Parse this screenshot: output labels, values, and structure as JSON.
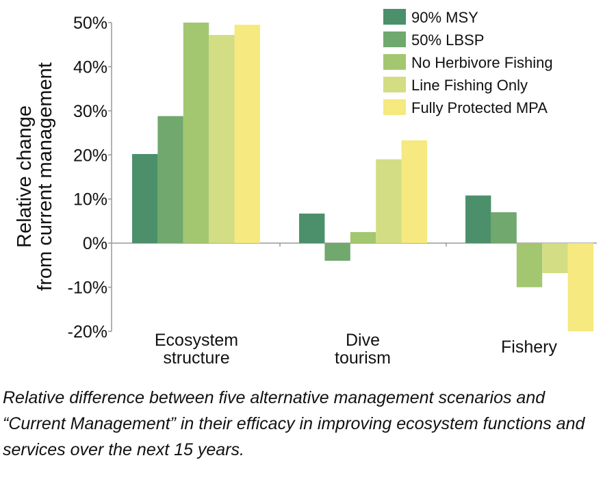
{
  "chart_data": {
    "type": "bar",
    "title": "",
    "ylabel_lines": [
      "Relative change",
      "from current management"
    ],
    "xlabel": "",
    "ylim": [
      -20,
      50
    ],
    "yticks": [
      "50%",
      "40%",
      "30%",
      "20%",
      "10%",
      "0%",
      "-10%",
      "-20%"
    ],
    "ytick_values": [
      50,
      40,
      30,
      20,
      10,
      0,
      -10,
      -20
    ],
    "categories": [
      [
        "Ecosystem",
        "structure"
      ],
      [
        "Dive",
        "tourism"
      ],
      [
        "Fishery"
      ]
    ],
    "legend_position": "top-right",
    "grid": false,
    "series": [
      {
        "name": "90% MSY",
        "color": "#4b906a",
        "values": [
          20.2,
          6.7,
          10.8
        ]
      },
      {
        "name": "50% LBSP",
        "color": "#70a86d",
        "values": [
          28.8,
          -4.0,
          7.0
        ]
      },
      {
        "name": "No Herbivore Fishing",
        "color": "#a3c770",
        "values": [
          50.0,
          2.5,
          -10.0
        ]
      },
      {
        "name": "Line Fishing Only",
        "color": "#d3dd83",
        "values": [
          47.2,
          19.0,
          -6.8
        ]
      },
      {
        "name": "Fully Protected MPA",
        "color": "#f5e97f",
        "values": [
          49.5,
          23.3,
          -20.0
        ]
      }
    ]
  },
  "caption": "Relative difference between five alternative management scenarios and “Current Management” in their efficacy in improving ecosystem functions and services over the next 15 years."
}
